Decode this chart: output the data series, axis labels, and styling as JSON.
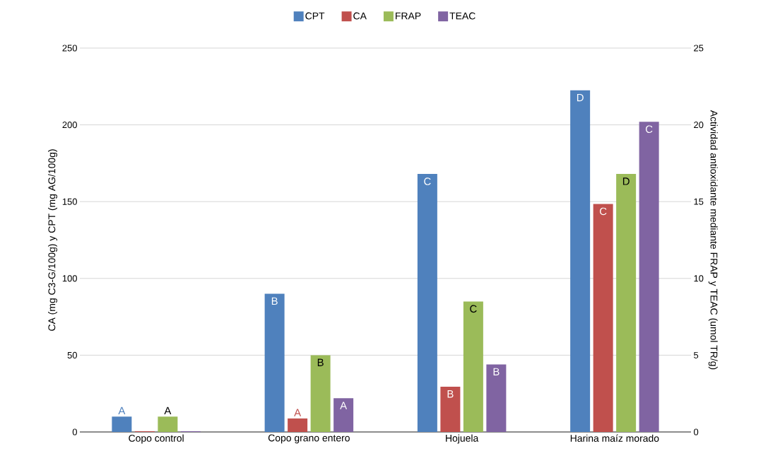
{
  "chart_data": {
    "type": "bar",
    "categories": [
      "Copo control",
      "Copo grano entero",
      "Hojuela",
      "Harina maíz morado"
    ],
    "series": [
      {
        "name": "CPT",
        "color": "#4f81bd",
        "values": [
          10,
          90,
          168,
          222.5
        ],
        "value_labels": [
          "A",
          "B",
          "C",
          "D"
        ]
      },
      {
        "name": "CA",
        "color": "#c0504d",
        "values": [
          0.5,
          8.8,
          29.5,
          148.5
        ],
        "value_labels": [
          null,
          "A",
          "B",
          "C"
        ]
      },
      {
        "name": "FRAP",
        "color": "#9bbb59",
        "axis": "y2",
        "values": [
          1.0,
          5.0,
          8.5,
          16.8
        ],
        "value_labels": [
          "A",
          "B",
          "C",
          "D"
        ]
      },
      {
        "name": "TEAC",
        "color": "#8064a2",
        "axis": "y2",
        "values": [
          0.05,
          2.2,
          4.4,
          20.2
        ],
        "value_labels": [
          null,
          "A",
          "B",
          "C"
        ]
      }
    ],
    "ylabel": "CA (mg C3-G/100g) y CPT (mg AG/100g)",
    "y2label": "Actividad antioxidante mediante FRAP y TEAC (umol TR/g)",
    "ylim": [
      0,
      250
    ],
    "yticks": [
      0,
      50,
      100,
      150,
      200,
      250
    ],
    "y2lim": [
      0,
      25
    ],
    "y2ticks": [
      0,
      5,
      10,
      15,
      20,
      25
    ],
    "grid": "y",
    "legend": "top"
  }
}
